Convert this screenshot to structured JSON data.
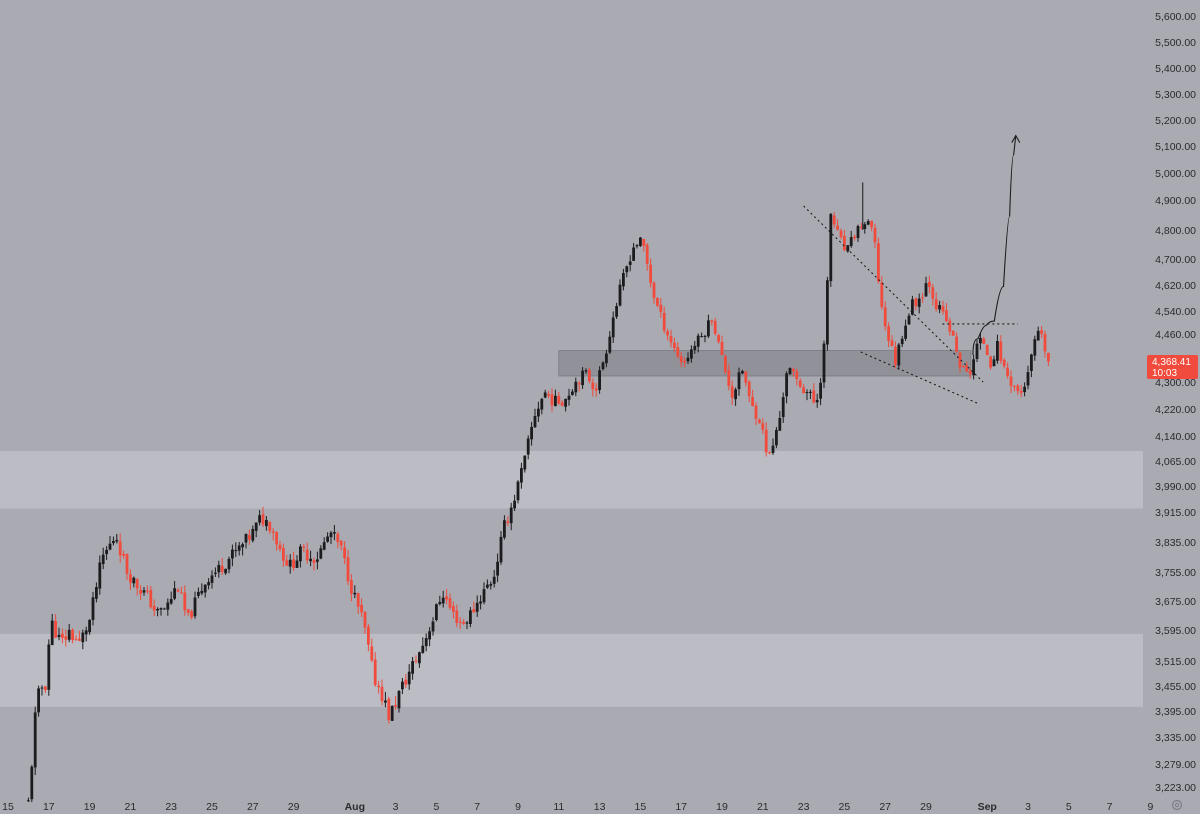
{
  "chart_data": {
    "type": "candlestick",
    "title": "",
    "xlabel": "",
    "ylabel": "",
    "ylim": [
      3180,
      5650
    ],
    "colors": {
      "background": "#a9aab2",
      "up": "#1c1c1e",
      "down": "#f04b3c",
      "zone_light": "#bebfc7",
      "zone_dark": "#8d8e96",
      "axis_text": "#2b2b2e",
      "price_tag": "#f04b3c"
    },
    "y_ticks": [
      "5,600.00",
      "5,500.00",
      "5,400.00",
      "5,300.00",
      "5,200.00",
      "5,100.00",
      "5,000.00",
      "4,900.00",
      "4,800.00",
      "4,700.00",
      "4,620.00",
      "4,540.00",
      "4,460.00",
      "4,300.00",
      "4,220.00",
      "4,140.00",
      "4,065.00",
      "3,990.00",
      "3,915.00",
      "3,835.00",
      "3,755.00",
      "3,675.00",
      "3,595.00",
      "3,515.00",
      "3,455.00",
      "3,395.00",
      "3,335.00",
      "3,279.00",
      "3,223.00"
    ],
    "y_tick_values": [
      5600,
      5500,
      5400,
      5300,
      5200,
      5100,
      5000,
      4900,
      4800,
      4700,
      4620,
      4540,
      4460,
      4300,
      4220,
      4140,
      4065,
      3990,
      3915,
      3835,
      3755,
      3675,
      3595,
      3515,
      3455,
      3395,
      3335,
      3279,
      3223
    ],
    "x_ticks": [
      "15",
      "17",
      "19",
      "21",
      "23",
      "25",
      "27",
      "29",
      "Aug",
      "3",
      "5",
      "7",
      "9",
      "11",
      "13",
      "15",
      "17",
      "19",
      "21",
      "23",
      "25",
      "27",
      "29",
      "Sep",
      "3",
      "5",
      "7",
      "9"
    ],
    "x_tick_days": [
      -1,
      1,
      3,
      5,
      7,
      9,
      11,
      13,
      16,
      18,
      20,
      22,
      24,
      26,
      28,
      30,
      32,
      34,
      36,
      38,
      40,
      42,
      44,
      47,
      49,
      51,
      53,
      55
    ],
    "x_bold": [
      "Aug",
      "Sep"
    ],
    "current_price": "4,368.41",
    "countdown": "10:03",
    "zones": [
      {
        "kind": "light",
        "from": 3925,
        "to": 4095
      },
      {
        "kind": "light",
        "from": 3405,
        "to": 3585
      },
      {
        "kind": "dark",
        "from": 4320,
        "to": 4405,
        "day_from": 26,
        "day_to": 46.2
      }
    ],
    "trendlines": [
      {
        "style": "dotted",
        "from": [
          38.0,
          4880
        ],
        "to": [
          46.8,
          4300
        ]
      },
      {
        "style": "dotted",
        "from": [
          40.8,
          4400
        ],
        "to": [
          46.6,
          4235
        ]
      },
      {
        "style": "dotted",
        "from": [
          44.8,
          4495
        ],
        "to": [
          48.5,
          4495
        ]
      }
    ],
    "projection": [
      [
        46.3,
        4390
      ],
      [
        46.8,
        4500
      ],
      [
        47.1,
        4480
      ],
      [
        47.6,
        4530
      ],
      [
        48.0,
        4700
      ],
      [
        48.2,
        5000
      ],
      [
        48.4,
        5140
      ]
    ],
    "anchors": [
      [
        0.0,
        3185
      ],
      [
        0.35,
        3390
      ],
      [
        0.6,
        3460
      ],
      [
        0.8,
        3440
      ],
      [
        1.1,
        3620
      ],
      [
        1.6,
        3560
      ],
      [
        2.0,
        3590
      ],
      [
        2.5,
        3560
      ],
      [
        3.0,
        3620
      ],
      [
        3.6,
        3790
      ],
      [
        4.3,
        3855
      ],
      [
        4.8,
        3760
      ],
      [
        5.3,
        3720
      ],
      [
        5.8,
        3690
      ],
      [
        6.3,
        3640
      ],
      [
        6.8,
        3660
      ],
      [
        7.3,
        3720
      ],
      [
        7.8,
        3620
      ],
      [
        8.4,
        3700
      ],
      [
        8.8,
        3740
      ],
      [
        9.3,
        3760
      ],
      [
        9.8,
        3790
      ],
      [
        10.4,
        3820
      ],
      [
        11.0,
        3860
      ],
      [
        11.4,
        3900
      ],
      [
        11.9,
        3880
      ],
      [
        12.3,
        3820
      ],
      [
        12.8,
        3770
      ],
      [
        13.4,
        3810
      ],
      [
        14.1,
        3790
      ],
      [
        14.8,
        3860
      ],
      [
        15.3,
        3820
      ],
      [
        15.9,
        3700
      ],
      [
        16.4,
        3620
      ],
      [
        16.9,
        3480
      ],
      [
        17.3,
        3440
      ],
      [
        17.7,
        3380
      ],
      [
        18.2,
        3440
      ],
      [
        18.7,
        3490
      ],
      [
        19.2,
        3540
      ],
      [
        19.8,
        3620
      ],
      [
        20.3,
        3700
      ],
      [
        20.8,
        3640
      ],
      [
        21.3,
        3610
      ],
      [
        21.8,
        3650
      ],
      [
        22.3,
        3700
      ],
      [
        22.8,
        3740
      ],
      [
        23.3,
        3870
      ],
      [
        23.8,
        3950
      ],
      [
        24.3,
        4060
      ],
      [
        24.8,
        4200
      ],
      [
        25.3,
        4270
      ],
      [
        25.8,
        4240
      ],
      [
        26.3,
        4250
      ],
      [
        26.8,
        4300
      ],
      [
        27.3,
        4330
      ],
      [
        27.8,
        4280
      ],
      [
        28.3,
        4400
      ],
      [
        28.7,
        4530
      ],
      [
        29.2,
        4650
      ],
      [
        29.7,
        4750
      ],
      [
        30.1,
        4760
      ],
      [
        30.6,
        4600
      ],
      [
        31.1,
        4500
      ],
      [
        31.6,
        4420
      ],
      [
        32.1,
        4360
      ],
      [
        32.6,
        4420
      ],
      [
        33.1,
        4460
      ],
      [
        33.5,
        4520
      ],
      [
        34.0,
        4380
      ],
      [
        34.5,
        4260
      ],
      [
        35.0,
        4340
      ],
      [
        35.4,
        4230
      ],
      [
        35.8,
        4200
      ],
      [
        36.3,
        4070
      ],
      [
        36.8,
        4180
      ],
      [
        37.2,
        4350
      ],
      [
        37.7,
        4300
      ],
      [
        38.2,
        4270
      ],
      [
        38.6,
        4230
      ],
      [
        38.9,
        4340
      ],
      [
        39.1,
        4500
      ],
      [
        39.3,
        4860
      ],
      [
        39.7,
        4780
      ],
      [
        40.1,
        4720
      ],
      [
        40.6,
        4800
      ],
      [
        41.0,
        4820
      ],
      [
        41.4,
        4800
      ],
      [
        41.8,
        4560
      ],
      [
        42.1,
        4460
      ],
      [
        42.5,
        4370
      ],
      [
        42.9,
        4480
      ],
      [
        43.3,
        4560
      ],
      [
        43.7,
        4580
      ],
      [
        44.1,
        4640
      ],
      [
        44.5,
        4560
      ],
      [
        44.9,
        4520
      ],
      [
        45.3,
        4450
      ],
      [
        45.7,
        4350
      ],
      [
        46.1,
        4320
      ],
      [
        46.5,
        4420
      ],
      [
        46.8,
        4440
      ],
      [
        47.2,
        4360
      ],
      [
        47.5,
        4420
      ],
      [
        47.9,
        4330
      ],
      [
        48.3,
        4290
      ],
      [
        48.6,
        4260
      ],
      [
        49.0,
        4320
      ],
      [
        49.4,
        4460
      ],
      [
        49.7,
        4440
      ],
      [
        50.0,
        4368.41
      ]
    ]
  }
}
